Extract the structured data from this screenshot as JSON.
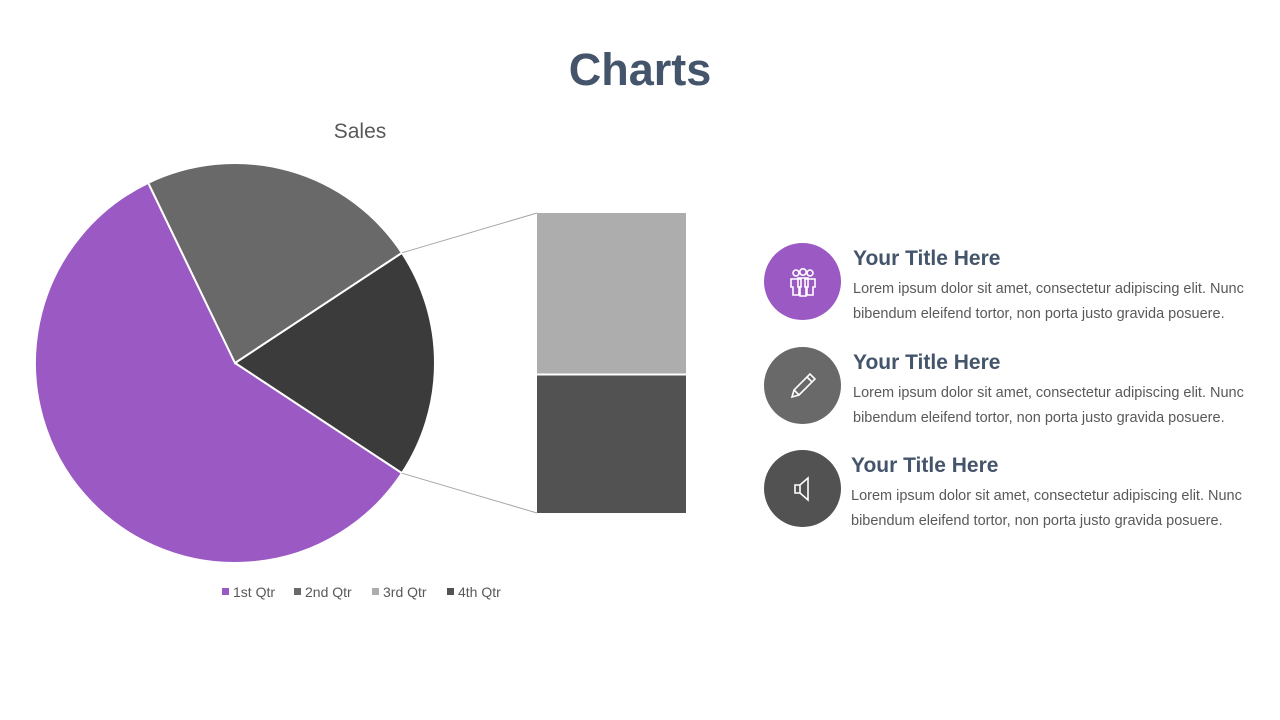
{
  "page": {
    "title": "Charts"
  },
  "chart_data": {
    "type": "pie",
    "title": "Sales",
    "categories": [
      "1st Qtr",
      "2nd Qtr",
      "3rd Qtr",
      "4th Qtr"
    ],
    "values": [
      8.2,
      3.2,
      1.4,
      1.2
    ],
    "colors": [
      "#9b59c4",
      "#696969",
      "#adadad",
      "#525252"
    ],
    "detail_slice_color": "#3b3b3b",
    "split": "pie-of-pie: last two categories shown in secondary stacked bar",
    "legend_position": "bottom"
  },
  "features": [
    {
      "title": "Your Title Here",
      "body": "Lorem ipsum dolor sit amet, consectetur adipiscing elit. Nunc bibendum eleifend tortor, non porta justo gravida posuere.",
      "icon": "people-group-icon",
      "color": "#9b59c4"
    },
    {
      "title": "Your Title Here",
      "body": "Lorem ipsum dolor sit amet, consectetur adipiscing elit. Nunc bibendum eleifend tortor, non porta justo gravida posuere.",
      "icon": "pencil-icon",
      "color": "#696969"
    },
    {
      "title": "Your Title Here",
      "body": "Lorem ipsum dolor sit amet, consectetur adipiscing elit. Nunc bibendum eleifend tortor, non porta justo gravida posuere.",
      "icon": "speaker-icon",
      "color": "#525252"
    }
  ]
}
